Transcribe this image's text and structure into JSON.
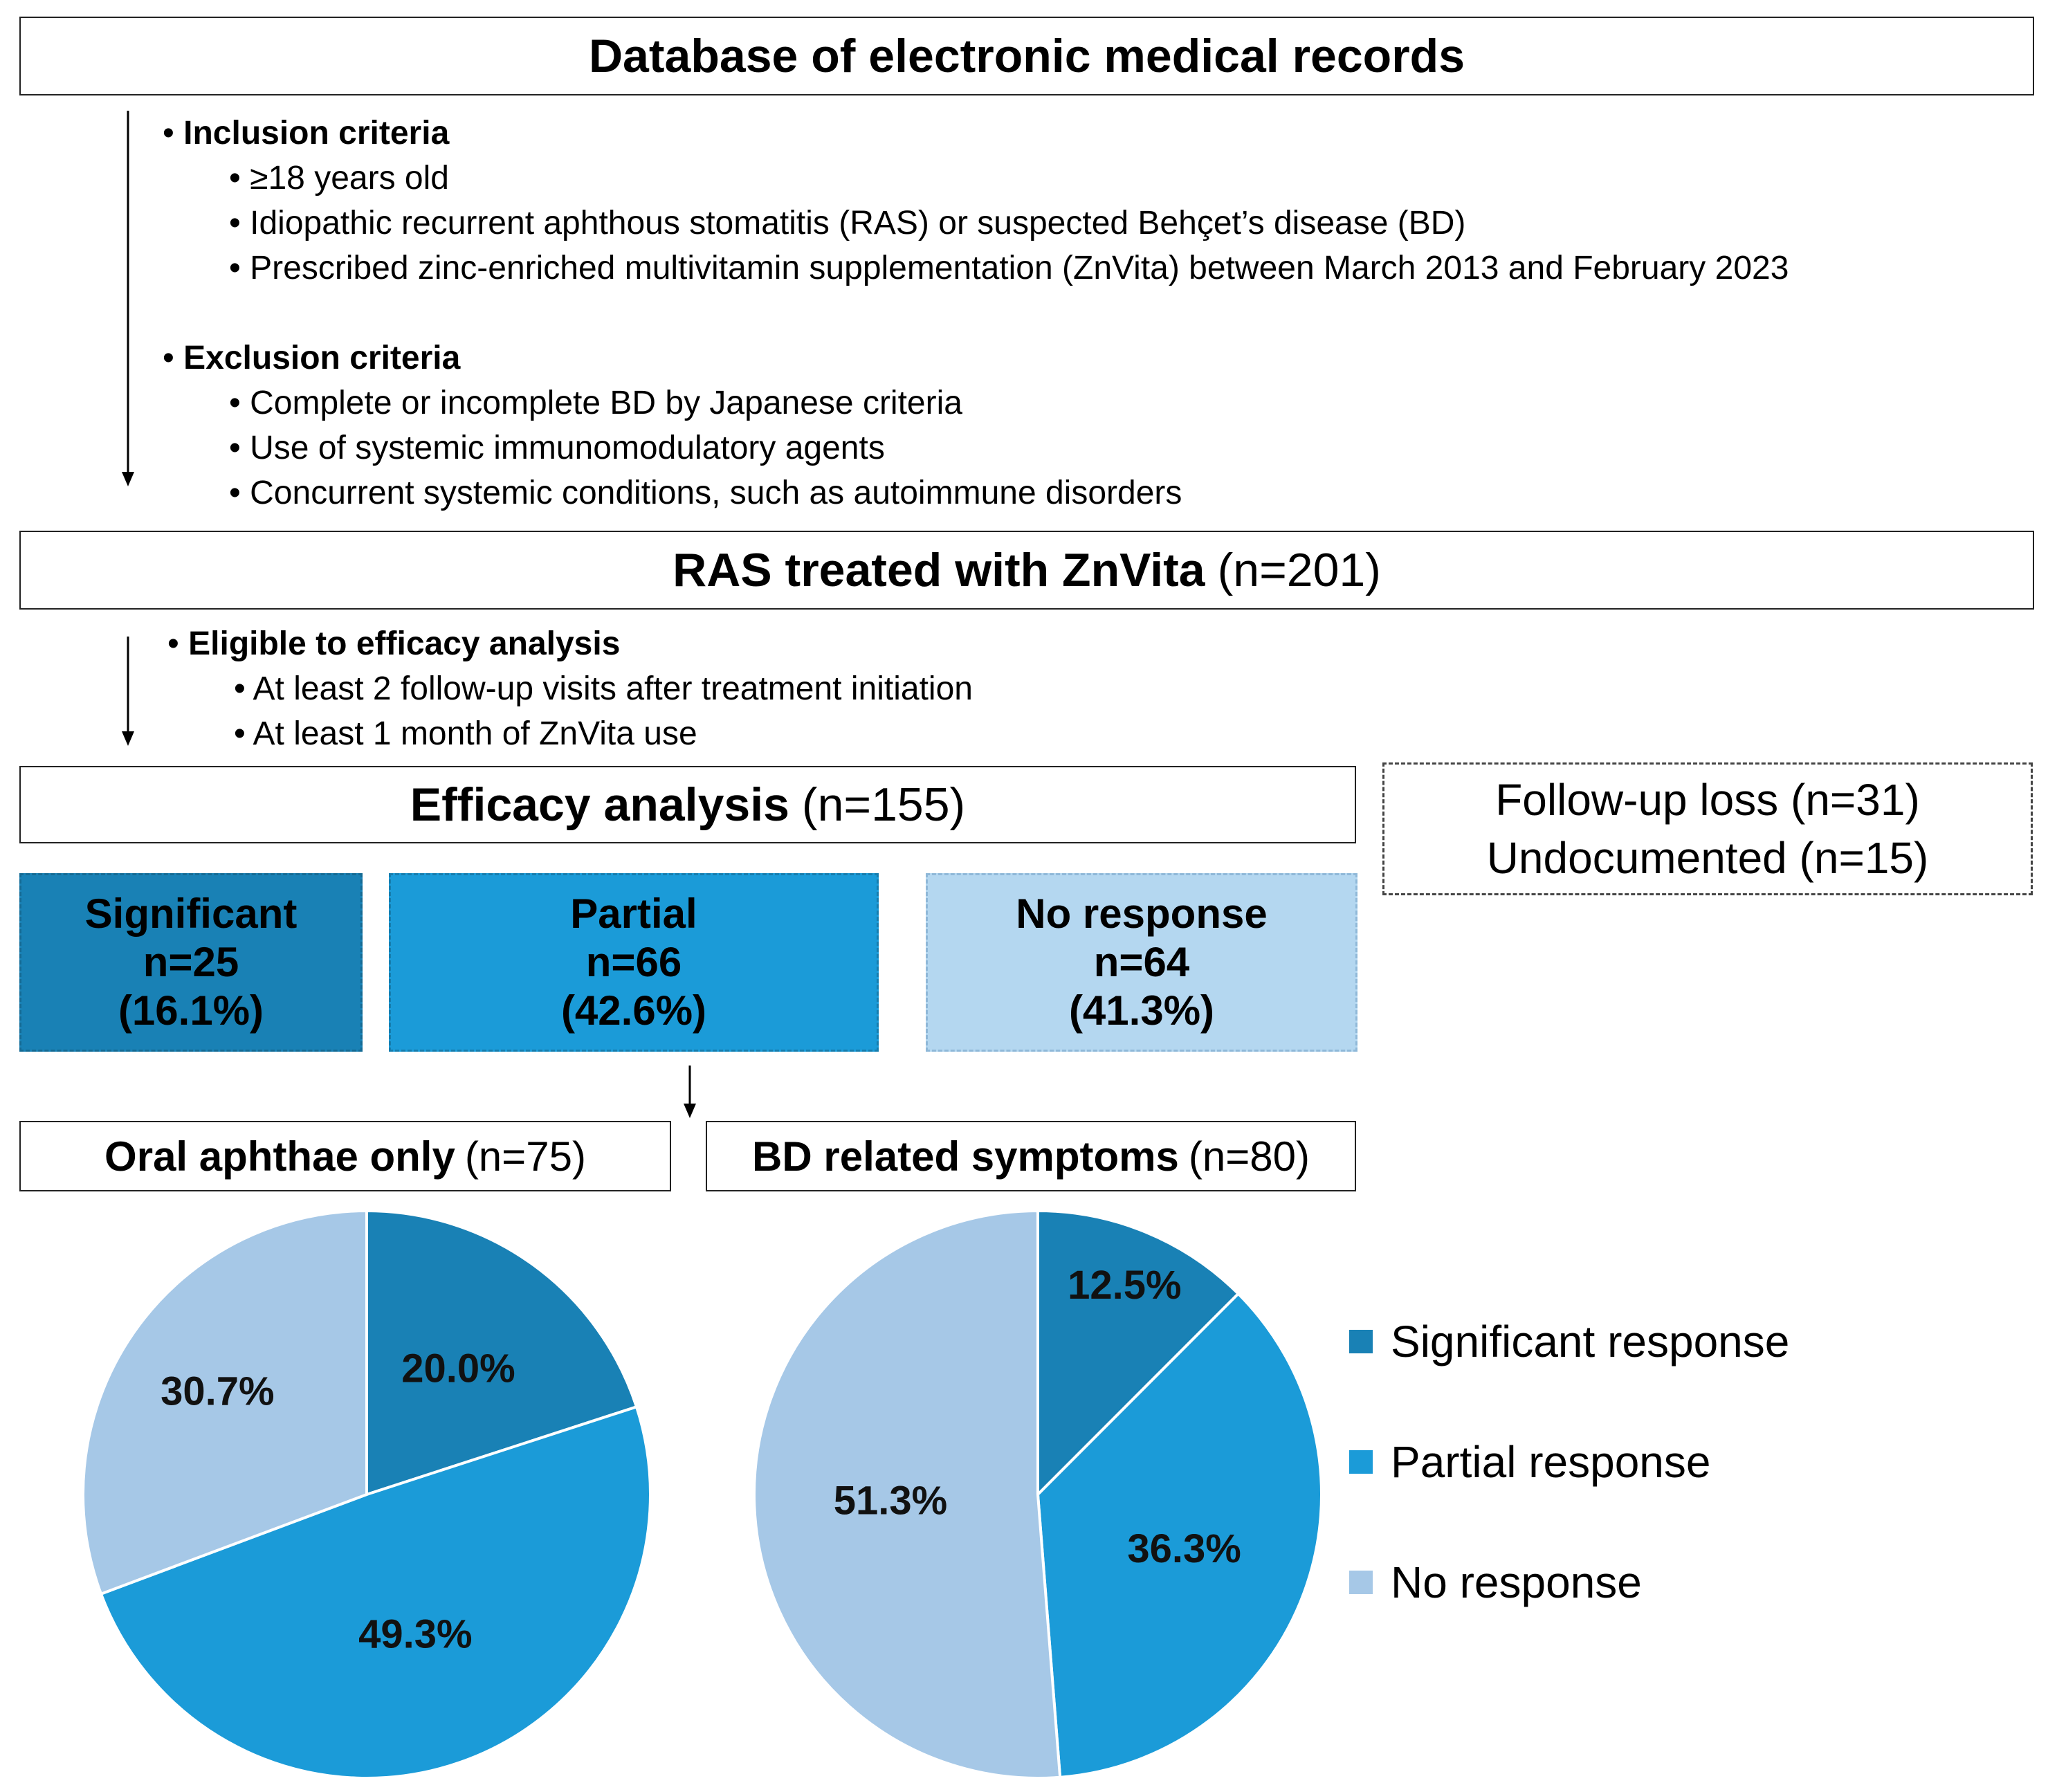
{
  "colors": {
    "significant": "#1981B5",
    "partial": "#1B9BD8",
    "none": "#A6C8E7",
    "no_response_box": "#B4D7F0"
  },
  "database_box": {
    "title": "Database of electronic medical records"
  },
  "inclusion": {
    "heading": "Inclusion criteria",
    "items": [
      "≥18 years old",
      "Idiopathic recurrent aphthous stomatitis (RAS) or suspected Behçet’s disease (BD)",
      "Prescribed zinc-enriched multivitamin supplementation (ZnVita) between March 2013 and February 2023"
    ]
  },
  "exclusion": {
    "heading": "Exclusion criteria",
    "items": [
      "Complete or incomplete BD by Japanese criteria",
      "Use of systemic immunomodulatory agents",
      "Concurrent systemic conditions, such as autoimmune disorders"
    ]
  },
  "ras_box": {
    "title": "RAS treated with ZnVita",
    "count": "(n=201)"
  },
  "eligibility": {
    "heading": "Eligible to efficacy analysis",
    "items": [
      "At least 2 follow-up visits after treatment initiation",
      "At least 1 month of ZnVita use"
    ]
  },
  "efficacy_box": {
    "title": "Efficacy analysis",
    "count": "(n=155)"
  },
  "excluded_box": {
    "line1": "Follow-up loss (n=31)",
    "line2": "Undocumented (n=15)"
  },
  "responses": [
    {
      "label": "Significant",
      "n": "n=25",
      "pct": "(16.1%)"
    },
    {
      "label": "Partial",
      "n": "n=66",
      "pct": "(42.6%)"
    },
    {
      "label": "No response",
      "n": "n=64",
      "pct": "(41.3%)"
    }
  ],
  "oral_box": {
    "title": "Oral aphthae only",
    "count": "(n=75)"
  },
  "bd_box": {
    "title": "BD related symptoms",
    "count": "(n=80)"
  },
  "chart_data": [
    {
      "type": "pie",
      "title": "Oral aphthae only (n=75)",
      "categories": [
        "Significant response",
        "Partial response",
        "No response"
      ],
      "values": [
        20.0,
        49.3,
        30.7
      ],
      "labels": [
        "20.0%",
        "49.3%",
        "30.7%"
      ]
    },
    {
      "type": "pie",
      "title": "BD related symptoms (n=80)",
      "categories": [
        "Significant response",
        "Partial response",
        "No response"
      ],
      "values": [
        12.5,
        36.3,
        51.3
      ],
      "labels": [
        "12.5%",
        "36.3%",
        "51.3%"
      ]
    }
  ],
  "legend": [
    "Significant response",
    "Partial response",
    "No response"
  ]
}
